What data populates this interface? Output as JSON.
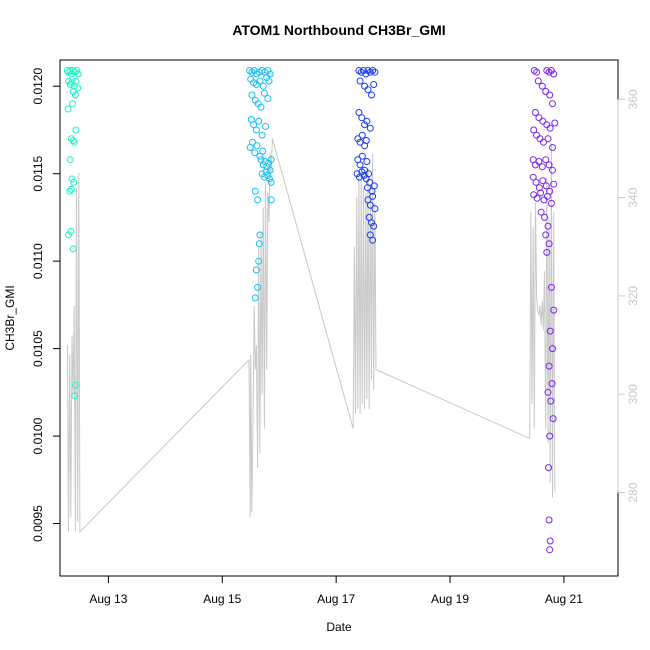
{
  "chart_data": {
    "type": "scatter",
    "title": "ATOM1 Northbound CH3Br_GMI",
    "xlabel": "Date",
    "ylabel": "CH3Br_GMI",
    "x_unit": "days after 2016-08-12 00:00",
    "xlim": [
      0.15,
      9.95
    ],
    "ylim": [
      0.0092,
      0.01215
    ],
    "y_ticks": [
      0.0095,
      0.01,
      0.0105,
      0.011,
      0.0115,
      0.012
    ],
    "y_tick_labels": [
      "0.0095",
      "0.0100",
      "0.0105",
      "0.0110",
      "0.0115",
      "0.0120"
    ],
    "x_ticks": [
      1,
      3,
      5,
      7,
      9
    ],
    "x_tick_labels": [
      "Aug 13",
      "Aug 15",
      "Aug 17",
      "Aug 19",
      "Aug 21"
    ],
    "y2_ticks": [
      280,
      300,
      320,
      340,
      360
    ],
    "y2_tick_labels": [
      "280",
      "300",
      "320",
      "340",
      "360"
    ],
    "y2lim": [
      263,
      368
    ],
    "grid": false,
    "legend": "none",
    "colors": {
      "flight1": "#19f5c8",
      "flight2": "#12c2f7",
      "flight3": "#1a3cf0",
      "flight4": "#7a25ee",
      "line": "#c8c8c8"
    },
    "series": [
      {
        "color_key": "flight1",
        "points": [
          [
            0.28,
            0.01209
          ],
          [
            0.3,
            0.01208
          ],
          [
            0.33,
            0.01209
          ],
          [
            0.35,
            0.01207
          ],
          [
            0.38,
            0.01209
          ],
          [
            0.41,
            0.01208
          ],
          [
            0.44,
            0.01209
          ],
          [
            0.47,
            0.01207
          ],
          [
            0.3,
            0.01203
          ],
          [
            0.33,
            0.01201
          ],
          [
            0.36,
            0.01202
          ],
          [
            0.4,
            0.012
          ],
          [
            0.43,
            0.01203
          ],
          [
            0.46,
            0.01199
          ],
          [
            0.38,
            0.01197
          ],
          [
            0.42,
            0.01195
          ],
          [
            0.29,
            0.01187
          ],
          [
            0.37,
            0.0119
          ],
          [
            0.35,
            0.0117
          ],
          [
            0.38,
            0.01169
          ],
          [
            0.4,
            0.01168
          ],
          [
            0.33,
            0.01158
          ],
          [
            0.36,
            0.01147
          ],
          [
            0.39,
            0.01145
          ],
          [
            0.32,
            0.0114
          ],
          [
            0.35,
            0.01141
          ],
          [
            0.3,
            0.01115
          ],
          [
            0.34,
            0.01117
          ],
          [
            0.38,
            0.01107
          ],
          [
            0.42,
            0.01029
          ],
          [
            0.41,
            0.01023
          ],
          [
            0.43,
            0.01175
          ]
        ]
      },
      {
        "color_key": "flight2",
        "points": [
          [
            3.48,
            0.01209
          ],
          [
            3.52,
            0.01208
          ],
          [
            3.56,
            0.01209
          ],
          [
            3.6,
            0.01207
          ],
          [
            3.65,
            0.01208
          ],
          [
            3.7,
            0.01209
          ],
          [
            3.75,
            0.01208
          ],
          [
            3.8,
            0.01209
          ],
          [
            3.84,
            0.01207
          ],
          [
            3.5,
            0.01204
          ],
          [
            3.55,
            0.01202
          ],
          [
            3.6,
            0.01201
          ],
          [
            3.66,
            0.01203
          ],
          [
            3.72,
            0.012
          ],
          [
            3.78,
            0.01205
          ],
          [
            3.82,
            0.01203
          ],
          [
            3.52,
            0.01195
          ],
          [
            3.58,
            0.01192
          ],
          [
            3.63,
            0.0119
          ],
          [
            3.68,
            0.01188
          ],
          [
            3.74,
            0.01196
          ],
          [
            3.8,
            0.01193
          ],
          [
            3.51,
            0.01181
          ],
          [
            3.55,
            0.01178
          ],
          [
            3.6,
            0.01175
          ],
          [
            3.64,
            0.0118
          ],
          [
            3.7,
            0.01172
          ],
          [
            3.76,
            0.01177
          ],
          [
            3.49,
            0.01165
          ],
          [
            3.53,
            0.01168
          ],
          [
            3.57,
            0.01162
          ],
          [
            3.61,
            0.01166
          ],
          [
            3.66,
            0.0116
          ],
          [
            3.71,
            0.01163
          ],
          [
            3.68,
            0.01158
          ],
          [
            3.72,
            0.01155
          ],
          [
            3.75,
            0.01157
          ],
          [
            3.78,
            0.01154
          ],
          [
            3.81,
            0.01156
          ],
          [
            3.84,
            0.01152
          ],
          [
            3.86,
            0.01158
          ],
          [
            3.7,
            0.0115
          ],
          [
            3.74,
            0.01148
          ],
          [
            3.77,
            0.01151
          ],
          [
            3.8,
            0.01149
          ],
          [
            3.83,
            0.01147
          ],
          [
            3.86,
            0.01145
          ],
          [
            3.58,
            0.0114
          ],
          [
            3.62,
            0.01135
          ],
          [
            3.66,
            0.01115
          ],
          [
            3.65,
            0.0111
          ],
          [
            3.64,
            0.011
          ],
          [
            3.6,
            0.01095
          ],
          [
            3.62,
            0.01085
          ],
          [
            3.58,
            0.01079
          ],
          [
            3.86,
            0.01135
          ]
        ]
      },
      {
        "color_key": "flight3",
        "points": [
          [
            5.4,
            0.01209
          ],
          [
            5.44,
            0.01208
          ],
          [
            5.48,
            0.01209
          ],
          [
            5.52,
            0.01207
          ],
          [
            5.56,
            0.01209
          ],
          [
            5.6,
            0.01208
          ],
          [
            5.64,
            0.01209
          ],
          [
            5.68,
            0.01208
          ],
          [
            5.42,
            0.01203
          ],
          [
            5.5,
            0.012
          ],
          [
            5.56,
            0.01198
          ],
          [
            5.62,
            0.01195
          ],
          [
            5.66,
            0.01201
          ],
          [
            5.4,
            0.01185
          ],
          [
            5.45,
            0.01182
          ],
          [
            5.5,
            0.01178
          ],
          [
            5.54,
            0.0118
          ],
          [
            5.6,
            0.01176
          ],
          [
            5.38,
            0.0117
          ],
          [
            5.42,
            0.01168
          ],
          [
            5.46,
            0.01172
          ],
          [
            5.5,
            0.01166
          ],
          [
            5.53,
            0.01169
          ],
          [
            5.38,
            0.01158
          ],
          [
            5.42,
            0.01155
          ],
          [
            5.46,
            0.0116
          ],
          [
            5.5,
            0.01152
          ],
          [
            5.54,
            0.01157
          ],
          [
            5.37,
            0.0115
          ],
          [
            5.41,
            0.01148
          ],
          [
            5.45,
            0.01151
          ],
          [
            5.49,
            0.01149
          ],
          [
            5.53,
            0.01147
          ],
          [
            5.57,
            0.0115
          ],
          [
            5.55,
            0.01142
          ],
          [
            5.59,
            0.01145
          ],
          [
            5.63,
            0.0114
          ],
          [
            5.67,
            0.01143
          ],
          [
            5.56,
            0.01135
          ],
          [
            5.6,
            0.01132
          ],
          [
            5.64,
            0.01137
          ],
          [
            5.68,
            0.0113
          ],
          [
            5.58,
            0.01125
          ],
          [
            5.62,
            0.01122
          ],
          [
            5.66,
            0.0112
          ],
          [
            5.6,
            0.01115
          ],
          [
            5.64,
            0.01112
          ]
        ]
      },
      {
        "color_key": "flight4",
        "points": [
          [
            8.48,
            0.01209
          ],
          [
            8.52,
            0.01208
          ],
          [
            8.7,
            0.01209
          ],
          [
            8.74,
            0.01208
          ],
          [
            8.78,
            0.01209
          ],
          [
            8.82,
            0.01207
          ],
          [
            8.55,
            0.01203
          ],
          [
            8.62,
            0.012
          ],
          [
            8.68,
            0.01197
          ],
          [
            8.75,
            0.01195
          ],
          [
            8.8,
            0.0119
          ],
          [
            8.5,
            0.01185
          ],
          [
            8.56,
            0.01182
          ],
          [
            8.63,
            0.0118
          ],
          [
            8.7,
            0.01178
          ],
          [
            8.76,
            0.01176
          ],
          [
            8.84,
            0.01179
          ],
          [
            8.47,
            0.01175
          ],
          [
            8.52,
            0.01172
          ],
          [
            8.58,
            0.0117
          ],
          [
            8.64,
            0.01168
          ],
          [
            8.72,
            0.0117
          ],
          [
            8.8,
            0.01165
          ],
          [
            8.46,
            0.01158
          ],
          [
            8.5,
            0.01155
          ],
          [
            8.56,
            0.01157
          ],
          [
            8.62,
            0.01154
          ],
          [
            8.68,
            0.01158
          ],
          [
            8.74,
            0.01155
          ],
          [
            8.8,
            0.01152
          ],
          [
            8.46,
            0.01148
          ],
          [
            8.51,
            0.01145
          ],
          [
            8.57,
            0.01142
          ],
          [
            8.63,
            0.01146
          ],
          [
            8.69,
            0.01143
          ],
          [
            8.75,
            0.0114
          ],
          [
            8.82,
            0.01144
          ],
          [
            8.47,
            0.01138
          ],
          [
            8.53,
            0.01136
          ],
          [
            8.59,
            0.01139
          ],
          [
            8.65,
            0.01135
          ],
          [
            8.71,
            0.01137
          ],
          [
            8.78,
            0.01133
          ],
          [
            8.6,
            0.01128
          ],
          [
            8.66,
            0.01125
          ],
          [
            8.72,
            0.0112
          ],
          [
            8.68,
            0.01115
          ],
          [
            8.74,
            0.0111
          ],
          [
            8.7,
            0.01105
          ],
          [
            8.78,
            0.01085
          ],
          [
            8.82,
            0.01072
          ],
          [
            8.76,
            0.0106
          ],
          [
            8.8,
            0.0105
          ],
          [
            8.74,
            0.0104
          ],
          [
            8.79,
            0.0103
          ],
          [
            8.72,
            0.01025
          ],
          [
            8.77,
            0.0102
          ],
          [
            8.81,
            0.0101
          ],
          [
            8.75,
            0.01
          ],
          [
            8.73,
            0.00982
          ],
          [
            8.74,
            0.00952
          ],
          [
            8.76,
            0.0094
          ],
          [
            8.75,
            0.00935
          ]
        ]
      }
    ],
    "right_axis_line": {
      "color_key": "line",
      "x": [
        0.28,
        0.3,
        0.32,
        0.34,
        0.36,
        0.38,
        0.4,
        0.42,
        0.44,
        0.46,
        0.48,
        0.5,
        3.47,
        3.49,
        3.5,
        3.52,
        3.54,
        3.56,
        3.58,
        3.6,
        3.62,
        3.64,
        3.66,
        3.68,
        3.7,
        3.72,
        3.74,
        3.76,
        3.78,
        3.8,
        3.82,
        3.84,
        3.86,
        3.88,
        5.3,
        5.32,
        5.34,
        5.36,
        5.38,
        5.4,
        5.42,
        5.44,
        5.46,
        5.48,
        5.5,
        5.52,
        5.54,
        5.56,
        5.58,
        5.6,
        5.62,
        5.64,
        5.66,
        5.68,
        5.7,
        8.4,
        8.42,
        8.44,
        8.46,
        8.48,
        8.5,
        8.52,
        8.54,
        8.56,
        8.58,
        8.6,
        8.62,
        8.64,
        8.66,
        8.68,
        8.7,
        8.72,
        8.74,
        8.76,
        8.78,
        8.8,
        8.82,
        8.84
      ],
      "y": [
        310,
        272,
        308,
        275,
        312,
        300,
        318,
        272,
        342,
        274,
        345,
        272,
        307,
        275,
        308,
        276,
        295,
        318,
        305,
        310,
        285,
        330,
        288,
        333,
        300,
        338,
        293,
        343,
        305,
        341,
        335,
        349,
        345,
        352,
        293,
        330,
        296,
        340,
        297,
        344,
        296,
        345,
        298,
        342,
        297,
        341,
        299,
        346,
        297,
        342,
        303,
        349,
        301,
        339,
        305,
        291,
        337,
        298,
        334,
        293,
        339,
        320,
        317,
        316,
        318,
        314,
        319,
        313,
        325,
        293,
        344,
        290,
        336,
        282,
        351,
        279,
        337,
        280
      ]
    }
  }
}
